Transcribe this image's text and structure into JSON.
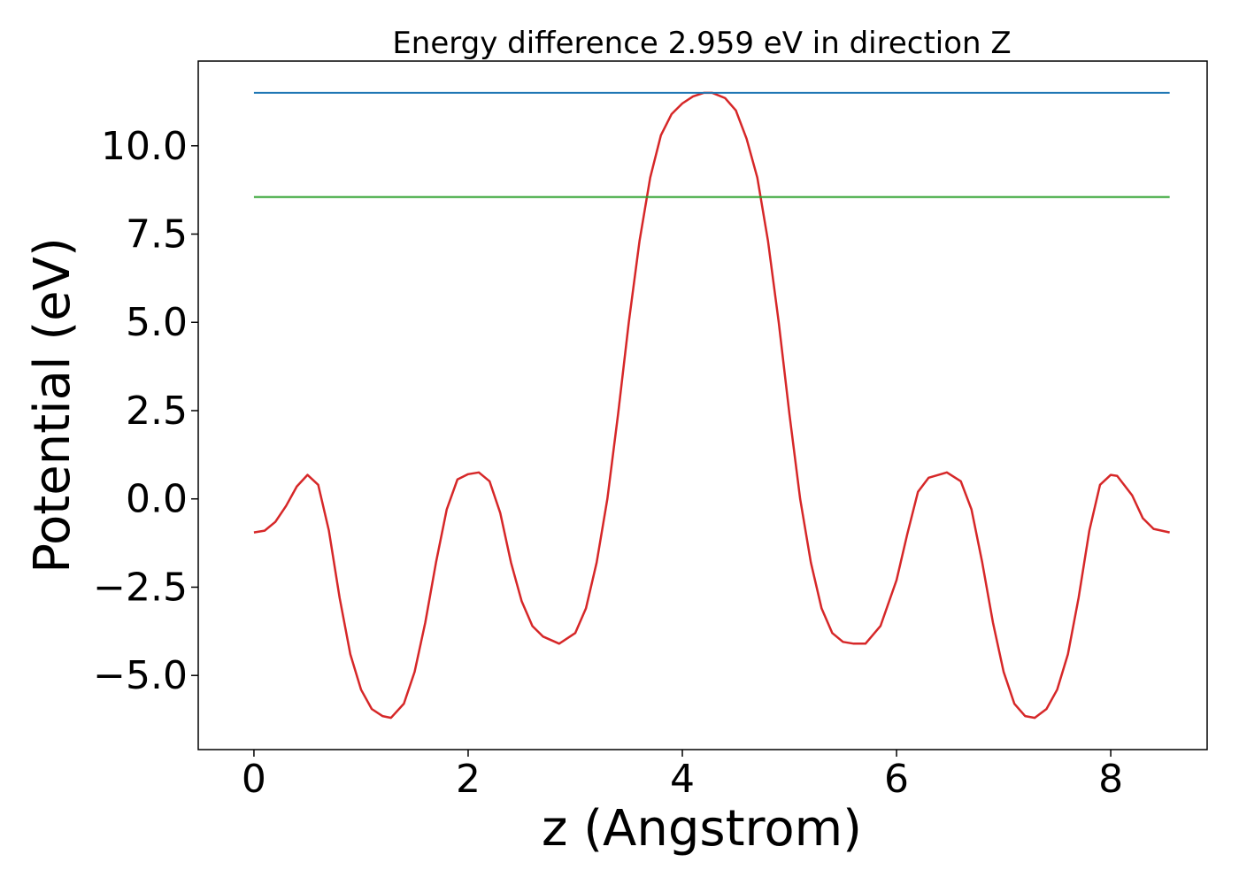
{
  "chart_data": {
    "type": "line",
    "title": "Energy difference 2.959 eV in direction Z",
    "xlabel": "z (Angstrom)",
    "ylabel": "Potential (eV)",
    "xlim": [
      -0.52,
      8.9
    ],
    "ylim": [
      -7.1,
      12.4
    ],
    "xticks": [
      0,
      2,
      4,
      6,
      8
    ],
    "xtick_labels": [
      "0",
      "2",
      "4",
      "6",
      "8"
    ],
    "yticks": [
      -5.0,
      -2.5,
      0.0,
      2.5,
      5.0,
      7.5,
      10.0
    ],
    "ytick_labels": [
      "−5.0",
      "−2.5",
      "0.0",
      "2.5",
      "5.0",
      "7.5",
      "10.0"
    ],
    "grid": false,
    "series": [
      {
        "color": "#d62728",
        "x": [
          0,
          0.1,
          0.2,
          0.3,
          0.4,
          0.5,
          0.6,
          0.7,
          0.8,
          0.9,
          1.0,
          1.1,
          1.2,
          1.28,
          1.4,
          1.5,
          1.6,
          1.7,
          1.8,
          1.9,
          2.0,
          2.1,
          2.2,
          2.3,
          2.4,
          2.5,
          2.6,
          2.7,
          2.85,
          3.0,
          3.1,
          3.2,
          3.3,
          3.4,
          3.5,
          3.6,
          3.7,
          3.8,
          3.9,
          4.0,
          4.1,
          4.2,
          4.28,
          4.4,
          4.5,
          4.6,
          4.7,
          4.8,
          4.9,
          5.0,
          5.1,
          5.2,
          5.3,
          5.4,
          5.5,
          5.6,
          5.71,
          5.85,
          6.0,
          6.1,
          6.2,
          6.3,
          6.47,
          6.6,
          6.7,
          6.8,
          6.9,
          7.0,
          7.1,
          7.2,
          7.29,
          7.4,
          7.5,
          7.6,
          7.7,
          7.8,
          7.9,
          8.0,
          8.06,
          8.2,
          8.3,
          8.4,
          8.55
        ],
        "y": [
          -0.95,
          -0.9,
          -0.65,
          -0.2,
          0.35,
          0.68,
          0.4,
          -0.9,
          -2.8,
          -4.4,
          -5.4,
          -5.95,
          -6.15,
          -6.2,
          -5.8,
          -4.9,
          -3.5,
          -1.8,
          -0.3,
          0.55,
          0.7,
          0.75,
          0.5,
          -0.4,
          -1.8,
          -2.9,
          -3.6,
          -3.9,
          -4.1,
          -3.8,
          -3.1,
          -1.8,
          0.0,
          2.4,
          5.0,
          7.3,
          9.1,
          10.3,
          10.9,
          11.2,
          11.4,
          11.5,
          11.5,
          11.35,
          11.0,
          10.2,
          9.1,
          7.3,
          5.0,
          2.4,
          0.0,
          -1.8,
          -3.1,
          -3.8,
          -4.05,
          -4.1,
          -4.1,
          -3.6,
          -2.3,
          -1.0,
          0.2,
          0.6,
          0.75,
          0.5,
          -0.3,
          -1.8,
          -3.5,
          -4.9,
          -5.8,
          -6.15,
          -6.2,
          -5.95,
          -5.4,
          -4.4,
          -2.8,
          -0.9,
          0.4,
          0.68,
          0.65,
          0.1,
          -0.55,
          -0.85,
          -0.95
        ]
      },
      {
        "color": "#1f77b4",
        "x": [
          0,
          8.55
        ],
        "y": [
          11.5,
          11.5
        ]
      },
      {
        "color": "#2ca02c",
        "x": [
          0,
          8.55
        ],
        "y": [
          8.55,
          8.55
        ]
      }
    ]
  }
}
